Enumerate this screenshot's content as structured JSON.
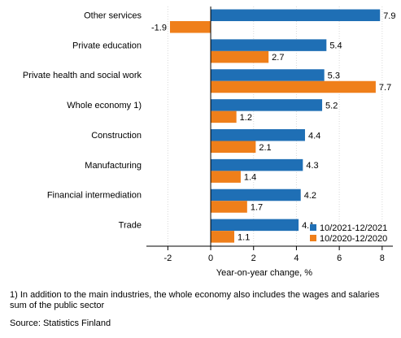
{
  "chart_data": {
    "type": "bar",
    "orientation": "horizontal",
    "categories": [
      "Other services",
      "Private education",
      "Private health and social work",
      "Whole economy 1)",
      "Construction",
      "Manufacturing",
      "Financial intermediation",
      "Trade"
    ],
    "series": [
      {
        "name": "10/2021-12/2021",
        "color": "#1f6fb5",
        "values": [
          7.9,
          5.4,
          5.3,
          5.2,
          4.4,
          4.3,
          4.2,
          4.1
        ]
      },
      {
        "name": "10/2020-12/2020",
        "color": "#ef7f1a",
        "values": [
          -1.9,
          2.7,
          7.7,
          1.2,
          2.1,
          1.4,
          1.7,
          1.1
        ]
      }
    ],
    "xlim": [
      -3,
      8.5
    ],
    "xticks": [
      -2,
      0,
      2,
      4,
      6,
      8
    ],
    "xlabel": "Year-on-year change, %",
    "ylabel": "",
    "title": "",
    "grid": true,
    "legend_position": "bottom-right"
  },
  "footnote": "1) In addition to the main industries, the whole economy also includes the wages and salaries sum of the public sector",
  "source": "Source: Statistics Finland"
}
